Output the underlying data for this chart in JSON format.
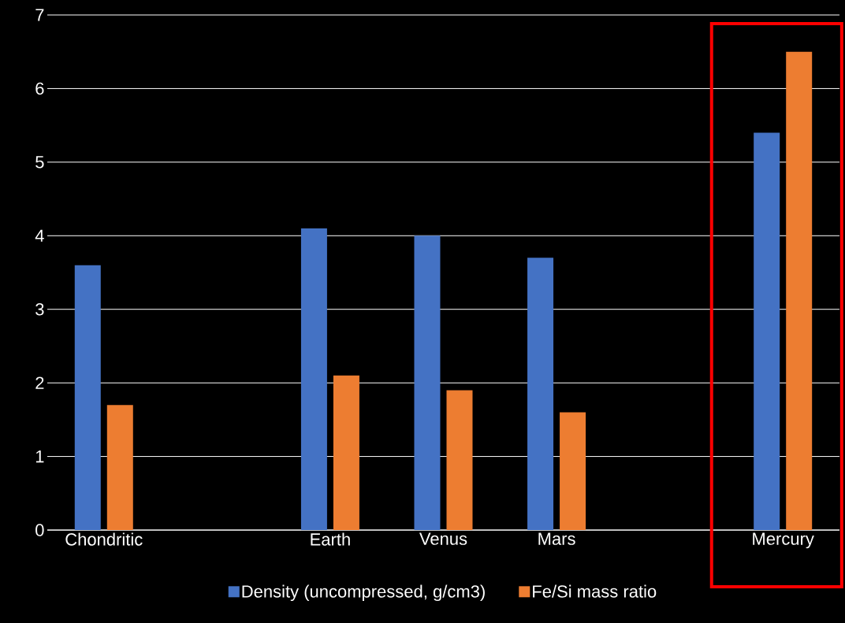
{
  "chart_data": {
    "type": "bar",
    "categories": [
      "Chondritic",
      null,
      "Earth",
      "Venus",
      "Mars",
      null,
      "Mercury"
    ],
    "series": [
      {
        "name": "Density (uncompressed, g/cm3)",
        "color": "#4472c4",
        "values": [
          3.6,
          null,
          4.1,
          4.0,
          3.7,
          null,
          5.4
        ]
      },
      {
        "name": "Fe/Si mass ratio",
        "color": "#ed7d31",
        "values": [
          1.7,
          null,
          2.1,
          1.9,
          1.6,
          null,
          6.5
        ]
      }
    ],
    "ylim": [
      0,
      7
    ],
    "yticks": [
      0,
      1,
      2,
      3,
      4,
      5,
      6,
      7
    ],
    "grid": "y",
    "legend": "bottom"
  }
}
